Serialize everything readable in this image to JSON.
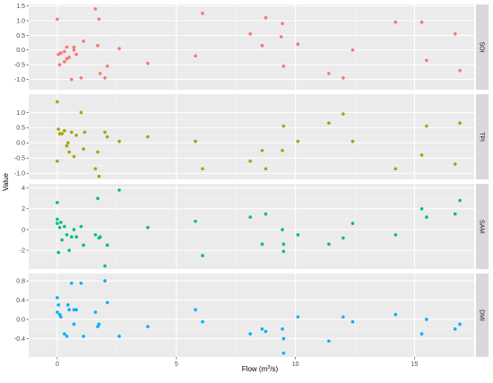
{
  "chart_data": {
    "type": "scatter",
    "xlabel": {
      "prefix": "Flow (m",
      "sup": "3",
      "suffix": "/s)"
    },
    "ylabel": "Value",
    "xlim": [
      -1.2,
      17.5
    ],
    "x_ticks": [
      0,
      5,
      10,
      15
    ],
    "grid": true,
    "facet_layout": "vertical, strips on right",
    "panels": [
      {
        "name": "SOI",
        "color": "#F8766D",
        "ylim": [
          -1.35,
          1.55
        ],
        "y_ticks": [
          1.5,
          1.0,
          0.5,
          0.0,
          -0.5,
          -1.0
        ],
        "y_tick_labels": [
          "1.5",
          "1.0",
          "0.5",
          "0.0",
          "-0.5",
          "-1.0"
        ],
        "points": [
          [
            0.0,
            1.05
          ],
          [
            0.05,
            -0.15
          ],
          [
            0.1,
            -0.5
          ],
          [
            0.15,
            -0.1
          ],
          [
            0.3,
            -0.05
          ],
          [
            0.3,
            -0.4
          ],
          [
            0.4,
            0.1
          ],
          [
            0.4,
            -0.3
          ],
          [
            0.5,
            -0.25
          ],
          [
            0.6,
            -1.0
          ],
          [
            0.7,
            0.1
          ],
          [
            0.7,
            0.0
          ],
          [
            0.8,
            -0.15
          ],
          [
            1.0,
            -0.95
          ],
          [
            1.1,
            0.3
          ],
          [
            1.6,
            1.4
          ],
          [
            1.7,
            0.15
          ],
          [
            1.75,
            1.05
          ],
          [
            1.8,
            -0.8
          ],
          [
            2.0,
            -0.95
          ],
          [
            2.1,
            -0.55
          ],
          [
            2.6,
            0.05
          ],
          [
            3.8,
            -0.45
          ],
          [
            5.8,
            -0.2
          ],
          [
            6.1,
            1.25
          ],
          [
            8.1,
            0.55
          ],
          [
            8.6,
            0.15
          ],
          [
            8.75,
            1.1
          ],
          [
            9.4,
            0.45
          ],
          [
            9.45,
            0.9
          ],
          [
            9.5,
            -0.55
          ],
          [
            10.1,
            0.2
          ],
          [
            11.4,
            -0.8
          ],
          [
            12.0,
            -0.95
          ],
          [
            12.4,
            0.0
          ],
          [
            14.2,
            0.95
          ],
          [
            15.3,
            0.95
          ],
          [
            15.5,
            -0.35
          ],
          [
            16.7,
            0.55
          ],
          [
            16.9,
            -0.7
          ]
        ]
      },
      {
        "name": "TPI",
        "color": "#A3A500",
        "ylim": [
          -1.2,
          1.6
        ],
        "y_ticks": [
          1.0,
          0.5,
          0.0,
          -0.5,
          -1.0
        ],
        "y_tick_labels": [
          "1.0",
          "0.5",
          "0.0",
          "-0.5",
          "-1.0"
        ],
        "points": [
          [
            0.0,
            1.35
          ],
          [
            0.0,
            -0.6
          ],
          [
            0.05,
            0.45
          ],
          [
            0.1,
            0.3
          ],
          [
            0.2,
            0.3
          ],
          [
            0.3,
            0.4
          ],
          [
            0.4,
            -0.1
          ],
          [
            0.45,
            0.0
          ],
          [
            0.5,
            -0.3
          ],
          [
            0.6,
            0.35
          ],
          [
            0.7,
            -0.45
          ],
          [
            0.8,
            0.25
          ],
          [
            1.0,
            1.0
          ],
          [
            1.1,
            -0.2
          ],
          [
            1.15,
            0.35
          ],
          [
            1.6,
            -0.85
          ],
          [
            1.7,
            -0.3
          ],
          [
            1.75,
            -1.1
          ],
          [
            2.0,
            0.35
          ],
          [
            2.1,
            0.2
          ],
          [
            2.6,
            0.05
          ],
          [
            3.8,
            0.2
          ],
          [
            5.8,
            0.05
          ],
          [
            6.1,
            -0.85
          ],
          [
            8.1,
            -0.6
          ],
          [
            8.6,
            -0.25
          ],
          [
            8.75,
            -0.85
          ],
          [
            9.45,
            -0.25
          ],
          [
            9.5,
            0.55
          ],
          [
            10.1,
            0.05
          ],
          [
            11.4,
            0.65
          ],
          [
            12.0,
            0.95
          ],
          [
            12.4,
            0.05
          ],
          [
            14.2,
            -0.85
          ],
          [
            15.3,
            -0.4
          ],
          [
            15.5,
            0.55
          ],
          [
            16.7,
            -0.7
          ],
          [
            16.9,
            0.65
          ]
        ]
      },
      {
        "name": "SAM",
        "color": "#00BF7D",
        "ylim": [
          -3.8,
          4.4
        ],
        "y_ticks": [
          4,
          2,
          0,
          -2
        ],
        "y_tick_labels": [
          "4",
          "2",
          "0",
          "-2"
        ],
        "points": [
          [
            0.0,
            2.6
          ],
          [
            0.0,
            1.0
          ],
          [
            0.0,
            0.6
          ],
          [
            0.05,
            -2.2
          ],
          [
            0.1,
            0.2
          ],
          [
            0.15,
            0.7
          ],
          [
            0.2,
            -1.0
          ],
          [
            0.3,
            0.3
          ],
          [
            0.4,
            -0.5
          ],
          [
            0.5,
            -2.0
          ],
          [
            0.6,
            -0.7
          ],
          [
            0.7,
            0.0
          ],
          [
            0.8,
            -0.7
          ],
          [
            1.0,
            0.3
          ],
          [
            1.1,
            -1.5
          ],
          [
            1.6,
            -0.5
          ],
          [
            1.7,
            3.0
          ],
          [
            1.75,
            -0.8
          ],
          [
            1.8,
            -0.7
          ],
          [
            2.0,
            -3.5
          ],
          [
            2.1,
            -1.5
          ],
          [
            2.6,
            3.8
          ],
          [
            3.8,
            0.2
          ],
          [
            5.8,
            0.8
          ],
          [
            6.1,
            -2.5
          ],
          [
            8.1,
            1.2
          ],
          [
            8.6,
            -1.4
          ],
          [
            8.75,
            1.5
          ],
          [
            9.45,
            0.0
          ],
          [
            9.5,
            -1.4
          ],
          [
            9.5,
            -2.1
          ],
          [
            10.1,
            -0.5
          ],
          [
            11.4,
            -1.4
          ],
          [
            12.0,
            -0.8
          ],
          [
            12.4,
            0.6
          ],
          [
            14.2,
            -0.5
          ],
          [
            15.3,
            2.0
          ],
          [
            15.5,
            1.2
          ],
          [
            16.7,
            1.5
          ],
          [
            16.9,
            2.8
          ]
        ]
      },
      {
        "name": "DMI",
        "color": "#00B0F6",
        "ylim": [
          -0.78,
          0.95
        ],
        "y_ticks": [
          0.8,
          0.4,
          0.0,
          -0.4
        ],
        "y_tick_labels": [
          "0.8",
          "0.4",
          "0.0",
          "-0.4"
        ],
        "points": [
          [
            0.0,
            0.45
          ],
          [
            0.0,
            0.15
          ],
          [
            0.05,
            0.3
          ],
          [
            0.1,
            0.1
          ],
          [
            0.15,
            0.05
          ],
          [
            0.3,
            -0.3
          ],
          [
            0.4,
            -0.35
          ],
          [
            0.45,
            0.3
          ],
          [
            0.5,
            0.2
          ],
          [
            0.6,
            0.75
          ],
          [
            0.7,
            0.2
          ],
          [
            0.7,
            -0.1
          ],
          [
            0.8,
            0.2
          ],
          [
            1.0,
            0.75
          ],
          [
            1.1,
            -0.35
          ],
          [
            1.6,
            0.15
          ],
          [
            1.7,
            -0.15
          ],
          [
            1.75,
            -0.1
          ],
          [
            2.0,
            0.8
          ],
          [
            2.1,
            0.35
          ],
          [
            2.6,
            -0.35
          ],
          [
            3.8,
            -0.15
          ],
          [
            5.8,
            0.2
          ],
          [
            6.1,
            -0.05
          ],
          [
            8.1,
            -0.3
          ],
          [
            8.6,
            -0.2
          ],
          [
            8.75,
            -0.25
          ],
          [
            9.45,
            -0.2
          ],
          [
            9.5,
            -0.4
          ],
          [
            9.5,
            -0.7
          ],
          [
            10.1,
            0.05
          ],
          [
            11.4,
            -0.45
          ],
          [
            12.0,
            0.05
          ],
          [
            12.4,
            -0.05
          ],
          [
            14.2,
            0.1
          ],
          [
            15.3,
            -0.3
          ],
          [
            15.5,
            0.0
          ],
          [
            16.7,
            -0.2
          ],
          [
            16.9,
            -0.1
          ]
        ]
      }
    ]
  }
}
